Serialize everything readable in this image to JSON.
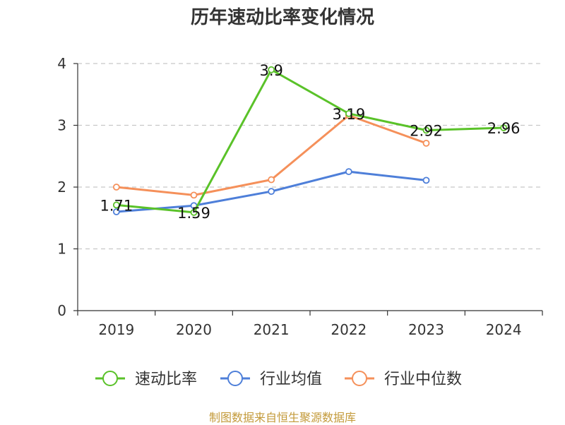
{
  "title": "历年速动比率变化情况",
  "source": "制图数据来自恒生聚源数据库",
  "chart_data": {
    "type": "line",
    "title": "历年速动比率变化情况",
    "xlabel": "",
    "ylabel": "",
    "categories": [
      "2019",
      "2020",
      "2021",
      "2022",
      "2023",
      "2024"
    ],
    "ylim": [
      0,
      4
    ],
    "yticks": [
      0,
      1,
      2,
      3,
      4
    ],
    "grid": true,
    "legend_position": "bottom",
    "series": [
      {
        "name": "速动比率",
        "color": "#5ac229",
        "values": [
          1.71,
          1.59,
          3.9,
          3.19,
          2.92,
          2.96
        ],
        "labels": [
          "1.71",
          "1.59",
          "3.9",
          "3.19",
          "2.92",
          "2.96"
        ]
      },
      {
        "name": "行业均值",
        "color": "#4e7fd9",
        "values": [
          1.6,
          1.7,
          1.93,
          2.25,
          2.11,
          null
        ],
        "labels": []
      },
      {
        "name": "行业中位数",
        "color": "#f5905a",
        "values": [
          2.0,
          1.87,
          2.12,
          3.16,
          2.71,
          null
        ],
        "labels": []
      }
    ]
  }
}
